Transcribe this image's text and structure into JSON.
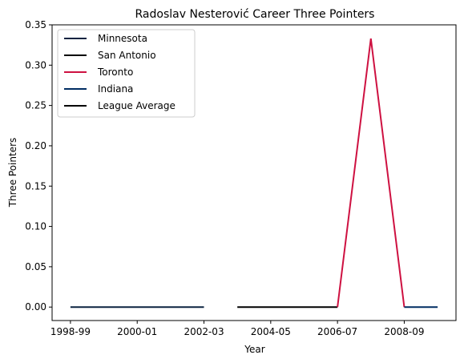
{
  "chart_data": {
    "type": "line",
    "title": "Radoslav Nesterović Career Three Pointers",
    "xlabel": "Year",
    "ylabel": "Three Pointers",
    "x_categories": [
      "1998-99",
      "1999-00",
      "2000-01",
      "2001-02",
      "2002-03",
      "2003-04",
      "2004-05",
      "2005-06",
      "2006-07",
      "2007-08",
      "2008-09",
      "2009-10"
    ],
    "x_tick_labels": [
      "1998-99",
      "2000-01",
      "2002-03",
      "2004-05",
      "2006-07",
      "2008-09"
    ],
    "ylim": [
      -0.0167,
      0.35
    ],
    "y_ticks": [
      "0.00",
      "0.05",
      "0.10",
      "0.15",
      "0.20",
      "0.25",
      "0.30",
      "0.35"
    ],
    "y_tick_values": [
      0,
      0.05,
      0.1,
      0.15,
      0.2,
      0.25,
      0.3,
      0.35
    ],
    "grid": false,
    "legend_position": "top-left",
    "series": [
      {
        "name": "Minnesota",
        "color": "#0C2340",
        "x": [
          "1998-99",
          "1999-00",
          "2000-01",
          "2001-02",
          "2002-03"
        ],
        "values": [
          0,
          0,
          0,
          0,
          0
        ]
      },
      {
        "name": "San Antonio",
        "color": "#000000",
        "x": [
          "2003-04",
          "2004-05",
          "2005-06",
          "2006-07"
        ],
        "values": [
          0,
          0,
          0,
          0
        ]
      },
      {
        "name": "Toronto",
        "color": "#CE1141",
        "x": [
          "2006-07",
          "2007-08",
          "2008-09"
        ],
        "values": [
          0,
          0.333,
          0
        ]
      },
      {
        "name": "Indiana",
        "color": "#002D62",
        "x": [
          "2008-09",
          "2009-10"
        ],
        "values": [
          0,
          0
        ]
      },
      {
        "name": "League Average",
        "color": "#000000",
        "x": [],
        "values": []
      }
    ]
  }
}
